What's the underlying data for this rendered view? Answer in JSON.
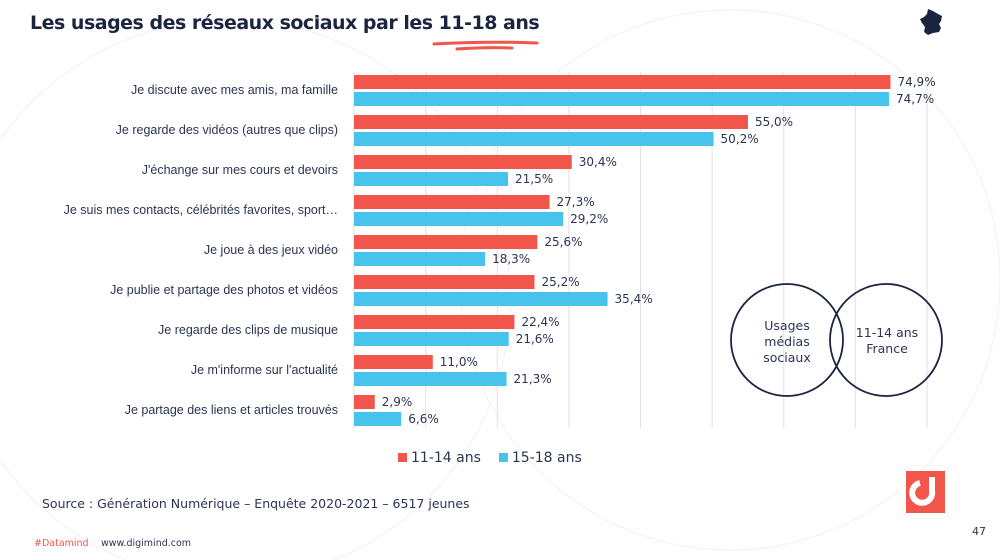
{
  "title": "Les usages des réseaux sociaux par les 11-18 ans",
  "colors": {
    "series1": "#f2564a",
    "series2": "#47c3ec",
    "text": "#1b2540"
  },
  "chart_data": {
    "type": "bar",
    "orientation": "horizontal",
    "categories": [
      "Je discute avec mes amis, ma famille",
      "Je regarde des vidéos (autres que clips)",
      "J'échange sur mes cours et  devoirs",
      "Je suis mes contacts, célébrités favorites, sport…",
      "Je joue à des jeux vidéo",
      "Je publie et partage des photos et vidéos",
      "Je regarde des clips de musique",
      "Je m'informe sur l'actualité",
      "Je partage des liens et  articles trouvés"
    ],
    "series": [
      {
        "name": "11-14 ans",
        "values": [
          74.9,
          55.0,
          30.4,
          27.3,
          25.6,
          25.2,
          22.4,
          11.0,
          2.9
        ],
        "labels": [
          "74,9%",
          "55,0%",
          "30,4%",
          "27,3%",
          "25,6%",
          "25,2%",
          "22,4%",
          "11,0%",
          "2,9%"
        ]
      },
      {
        "name": "15-18 ans",
        "values": [
          74.7,
          50.2,
          21.5,
          29.2,
          18.3,
          35.4,
          21.6,
          21.3,
          6.6
        ],
        "labels": [
          "74,7%",
          "50,2%",
          "21,5%",
          "29,2%",
          "18,3%",
          "35,4%",
          "21,6%",
          "21,3%",
          "6,6%"
        ]
      }
    ],
    "xlim": [
      0,
      80
    ],
    "grid": true,
    "legend": "bottom"
  },
  "venn": {
    "left": "Usages médias sociaux",
    "right": "11-14 ans France"
  },
  "source": "Source : Génération Numérique – Enquête 2020-2021 – 6517 jeunes",
  "footer": {
    "tag": "#Datamind",
    "url": "www.digimind.com",
    "page": "47"
  }
}
